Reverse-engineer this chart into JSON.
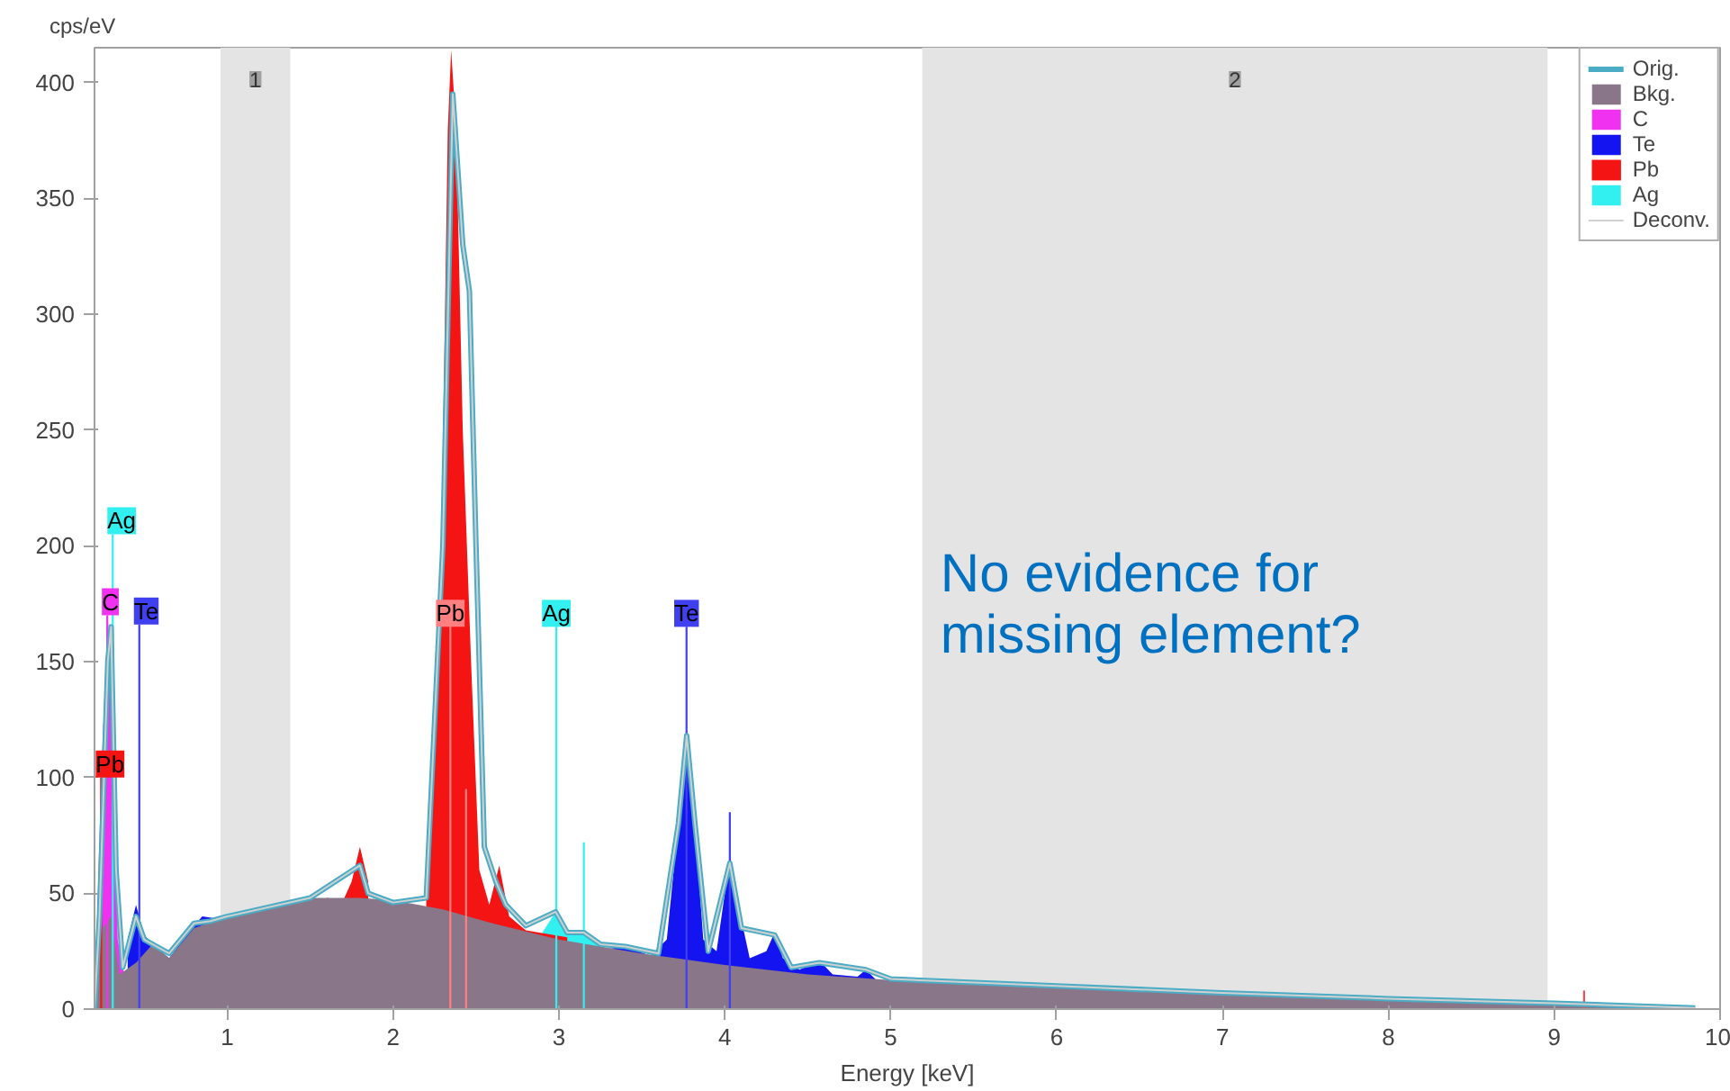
{
  "chart_data": {
    "type": "area",
    "xlabel": "Energy [keV]",
    "ylabel": "cps/eV",
    "xlim": [
      0.2,
      10
    ],
    "ylim": [
      0,
      415
    ],
    "xticks": [
      1,
      2,
      3,
      4,
      5,
      6,
      7,
      8,
      9,
      10
    ],
    "yticks": [
      0,
      50,
      100,
      150,
      200,
      250,
      300,
      350,
      400
    ],
    "grid": false,
    "legend": "top right",
    "series": [
      {
        "name": "Orig.",
        "type": "line",
        "color": "#4bacc6",
        "x": [
          0.2,
          0.23,
          0.28,
          0.3,
          0.33,
          0.37,
          0.45,
          0.5,
          0.6,
          0.65,
          0.8,
          0.9,
          1.0,
          1.5,
          1.8,
          1.85,
          2.0,
          2.2,
          2.3,
          2.36,
          2.42,
          2.46,
          2.5,
          2.55,
          2.62,
          2.68,
          2.8,
          2.98,
          3.05,
          3.15,
          3.25,
          3.4,
          3.6,
          3.72,
          3.77,
          3.82,
          3.9,
          4.03,
          4.1,
          4.3,
          4.4,
          4.57,
          4.85,
          5.0,
          6.0,
          7.0,
          8.0,
          9.0,
          9.85
        ],
        "values": [
          0,
          40,
          150,
          165,
          60,
          18,
          40,
          30,
          26,
          24,
          37,
          38,
          40,
          48,
          62,
          50,
          46,
          48,
          200,
          395,
          330,
          310,
          200,
          70,
          55,
          45,
          36,
          42,
          33,
          33,
          28,
          27,
          24,
          80,
          118,
          80,
          25,
          63,
          35,
          32,
          18,
          20,
          17,
          13,
          10,
          7,
          4.5,
          2.5,
          0.5
        ]
      },
      {
        "name": "Bkg.",
        "color": "#8a7689",
        "x": [
          0.2,
          0.25,
          0.3,
          0.35,
          0.45,
          0.55,
          0.65,
          0.8,
          1.0,
          1.2,
          1.5,
          1.8,
          2.0,
          2.3,
          2.6,
          3.0,
          3.5,
          4.0,
          4.5,
          5.0,
          5.5,
          6.0,
          6.5,
          7.0,
          7.5,
          8.0,
          8.5,
          9.0,
          9.5,
          9.85
        ],
        "values": [
          0,
          35,
          40,
          15,
          20,
          28,
          22,
          35,
          40,
          44,
          48,
          48,
          47,
          43,
          37,
          30,
          24,
          19,
          15,
          12.5,
          11,
          10,
          8.5,
          7,
          6,
          4.5,
          3.5,
          2.5,
          1.5,
          0.5
        ]
      },
      {
        "name": "C",
        "color": "#f032f0",
        "x": [
          0.2,
          0.24,
          0.28,
          0.31,
          0.34,
          0.38
        ],
        "values": [
          0,
          100,
          170,
          120,
          30,
          15
        ]
      },
      {
        "name": "Te",
        "color": "#1414f0",
        "x": [
          0.4,
          0.45,
          0.5,
          0.55,
          0.65,
          0.8,
          0.85,
          0.95,
          1.0,
          3.3,
          3.4,
          3.55,
          3.65,
          3.72,
          3.77,
          3.82,
          3.87,
          3.95,
          4.0,
          4.03,
          4.08,
          4.15,
          4.25,
          4.3,
          4.35,
          4.45,
          4.57,
          4.65,
          4.8,
          4.85,
          4.92,
          5.0
        ],
        "values": [
          30,
          45,
          32,
          28,
          22,
          36,
          40,
          39,
          40,
          26,
          27,
          23,
          30,
          80,
          121,
          80,
          30,
          25,
          50,
          67,
          45,
          22,
          25,
          33,
          22,
          17,
          21,
          15,
          14,
          17,
          12,
          12.5
        ]
      },
      {
        "name": "Pb",
        "color": "#f51414",
        "x": [
          1.6,
          1.7,
          1.75,
          1.8,
          1.85,
          2.0,
          2.2,
          2.28,
          2.33,
          2.35,
          2.38,
          2.42,
          2.47,
          2.52,
          2.58,
          2.64,
          2.7,
          2.8,
          3.05
        ],
        "values": [
          48,
          47,
          55,
          70,
          55,
          null,
          50,
          150,
          380,
          414,
          380,
          250,
          150,
          60,
          45,
          62,
          40,
          34,
          31
        ]
      },
      {
        "name": "Ag",
        "color": "#33f0f0",
        "x": [
          2.9,
          2.98,
          3.05,
          3.15,
          3.25
        ],
        "values": [
          33,
          42,
          33,
          33,
          27
        ]
      },
      {
        "name": "Deconv.",
        "type": "line",
        "color": "#d0d0d0",
        "x": [
          0.2,
          0.23,
          0.28,
          0.3,
          0.33,
          0.37,
          0.45,
          0.5,
          0.6,
          0.65,
          0.8,
          0.9,
          1.0,
          1.5,
          1.8,
          1.85,
          2.0,
          2.2,
          2.3,
          2.36,
          2.42,
          2.46,
          2.5,
          2.55,
          2.62,
          2.68,
          2.8,
          2.98,
          3.05,
          3.15,
          3.25,
          3.4,
          3.6,
          3.72,
          3.77,
          3.82,
          3.9,
          4.03,
          4.1,
          4.3,
          4.4,
          4.57,
          4.85,
          5.0,
          6.0,
          7.0,
          8.0,
          9.0,
          9.85
        ],
        "values": [
          0,
          40,
          150,
          165,
          60,
          18,
          40,
          30,
          26,
          24,
          37,
          38,
          40,
          48,
          62,
          50,
          46,
          48,
          200,
          395,
          330,
          310,
          200,
          70,
          55,
          45,
          36,
          42,
          33,
          33,
          28,
          27,
          24,
          80,
          118,
          80,
          25,
          63,
          35,
          32,
          18,
          20,
          17,
          13,
          10,
          7,
          4.5,
          2.5,
          0.5
        ]
      },
      {
        "type": "bar",
        "x": [
          0.24,
          0.277,
          0.31,
          0.47,
          2.345,
          2.44,
          2.984,
          3.15,
          3.769,
          4.03,
          9.18
        ],
        "values": [
          100,
          170,
          205,
          166,
          165,
          95,
          165,
          72,
          165,
          85,
          8
        ],
        "colors": [
          "#f51414",
          "#f032f0",
          "#33f0f0",
          "#4040f0",
          "#ff8080",
          "#ff8080",
          "#33f0f0",
          "#33f0f0",
          "#4040f0",
          "#4040f0",
          "#f05050"
        ]
      }
    ],
    "bands": [
      {
        "axis": "x",
        "from": 0.96,
        "to": 1.38,
        "label": "1",
        "color": "#e4e4e4"
      },
      {
        "axis": "x",
        "from": 5.19,
        "to": 8.96,
        "label": "2",
        "color": "#e4e4e4"
      }
    ],
    "annotations": [
      {
        "text": "Pb",
        "x": 0.24,
        "y": 100
      },
      {
        "text": "C",
        "x": 0.277,
        "y": 170
      },
      {
        "text": "Ag",
        "x": 0.31,
        "y": 205
      },
      {
        "text": "Te",
        "x": 0.47,
        "y": 166
      },
      {
        "text": "Pb",
        "x": 2.345,
        "y": 165
      },
      {
        "text": "Ag",
        "x": 2.984,
        "y": 165
      },
      {
        "text": "Te",
        "x": 3.769,
        "y": 165
      },
      "No evidence for\nmissing element?"
    ]
  }
}
